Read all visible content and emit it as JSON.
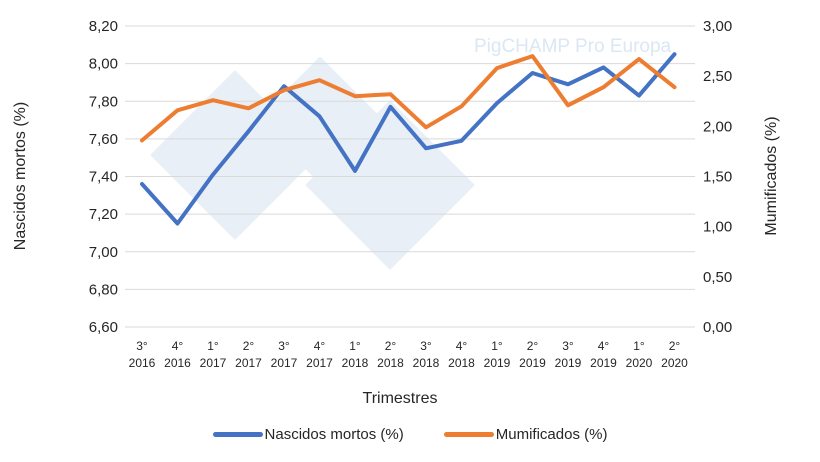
{
  "chart_data": {
    "type": "line",
    "watermark": "PigCHAMP Pro Europa",
    "xlabel": "Trimestres",
    "ylabel": "Nascidos mortos (%)",
    "y2label": "Mumificados (%)",
    "categories": [
      {
        "q": "3°",
        "year": "2016"
      },
      {
        "q": "4°",
        "year": "2016"
      },
      {
        "q": "1°",
        "year": "2017"
      },
      {
        "q": "2°",
        "year": "2017"
      },
      {
        "q": "3°",
        "year": "2017"
      },
      {
        "q": "4°",
        "year": "2017"
      },
      {
        "q": "1°",
        "year": "2018"
      },
      {
        "q": "2°",
        "year": "2018"
      },
      {
        "q": "3°",
        "year": "2018"
      },
      {
        "q": "4°",
        "year": "2018"
      },
      {
        "q": "1°",
        "year": "2019"
      },
      {
        "q": "2°",
        "year": "2019"
      },
      {
        "q": "3°",
        "year": "2019"
      },
      {
        "q": "4°",
        "year": "2019"
      },
      {
        "q": "1°",
        "year": "2020"
      },
      {
        "q": "2°",
        "year": "2020"
      }
    ],
    "ylim": [
      6.6,
      8.2
    ],
    "yticks": [
      "6,60",
      "6,80",
      "7,00",
      "7,20",
      "7,40",
      "7,60",
      "7,80",
      "8,00",
      "8,20"
    ],
    "y2lim": [
      0,
      3
    ],
    "y2ticks": [
      "0,00",
      "0,50",
      "1,00",
      "1,50",
      "2,00",
      "2,50",
      "3,00"
    ],
    "grid": true,
    "legend_position": "bottom",
    "series": [
      {
        "name": "Nascidos mortos (%)",
        "axis": "left",
        "color": "#4472c4",
        "values": [
          7.36,
          7.15,
          7.41,
          7.64,
          7.88,
          7.72,
          7.43,
          7.77,
          7.55,
          7.59,
          7.79,
          7.95,
          7.89,
          7.98,
          7.83,
          8.05
        ]
      },
      {
        "name": "Mumificados (%)",
        "axis": "right",
        "color": "#ed7d31",
        "values": [
          1.86,
          2.16,
          2.26,
          2.18,
          2.36,
          2.46,
          2.3,
          2.32,
          1.99,
          2.2,
          2.58,
          2.7,
          2.21,
          2.39,
          2.67,
          2.39
        ]
      }
    ]
  }
}
